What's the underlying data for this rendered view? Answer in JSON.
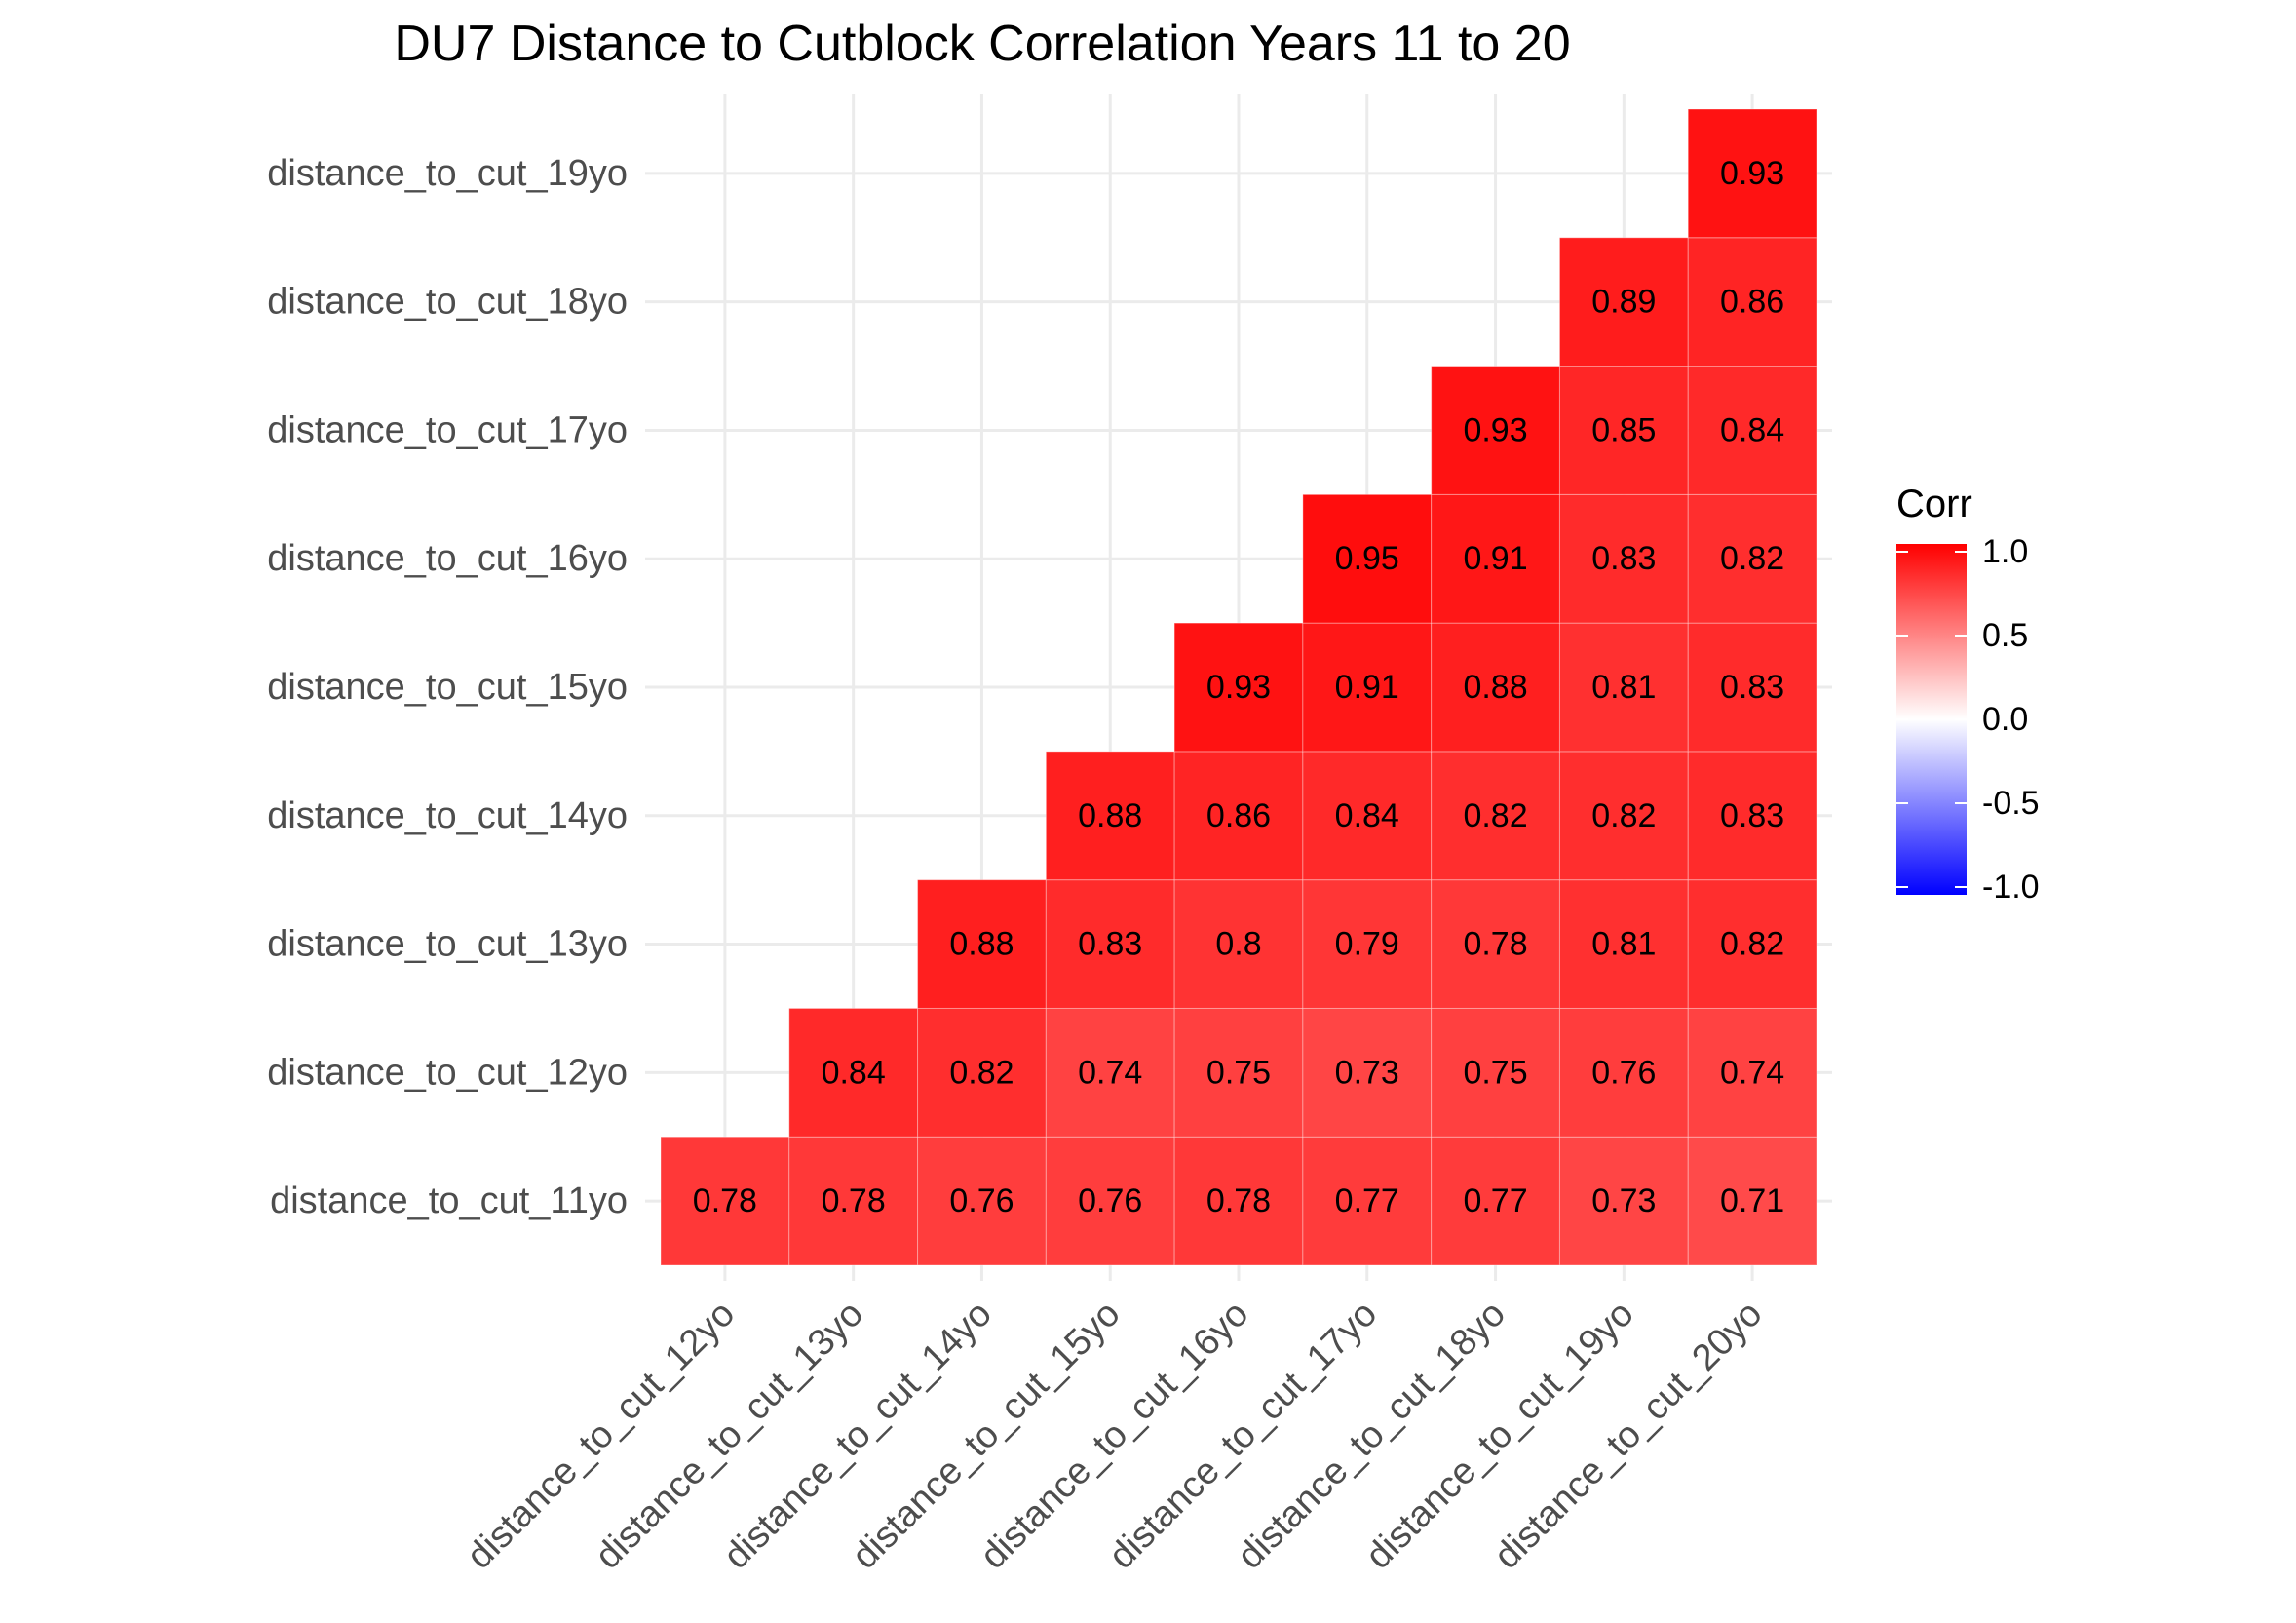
{
  "chart_data": {
    "type": "heatmap",
    "title": "DU7 Distance to Cutblock Correlation Years 11 to 20",
    "xlabel": "",
    "ylabel": "",
    "x_categories": [
      "distance_to_cut_12yo",
      "distance_to_cut_13yo",
      "distance_to_cut_14yo",
      "distance_to_cut_15yo",
      "distance_to_cut_16yo",
      "distance_to_cut_17yo",
      "distance_to_cut_18yo",
      "distance_to_cut_19yo",
      "distance_to_cut_20yo"
    ],
    "y_categories": [
      "distance_to_cut_11yo",
      "distance_to_cut_12yo",
      "distance_to_cut_13yo",
      "distance_to_cut_14yo",
      "distance_to_cut_15yo",
      "distance_to_cut_16yo",
      "distance_to_cut_17yo",
      "distance_to_cut_18yo",
      "distance_to_cut_19yo"
    ],
    "values": [
      [
        0.78,
        0.78,
        0.76,
        0.76,
        0.78,
        0.77,
        0.77,
        0.73,
        0.71
      ],
      [
        null,
        0.84,
        0.82,
        0.74,
        0.75,
        0.73,
        0.75,
        0.76,
        0.74
      ],
      [
        null,
        null,
        0.88,
        0.83,
        0.8,
        0.79,
        0.78,
        0.81,
        0.82
      ],
      [
        null,
        null,
        null,
        0.88,
        0.86,
        0.84,
        0.82,
        0.82,
        0.83
      ],
      [
        null,
        null,
        null,
        null,
        0.93,
        0.91,
        0.88,
        0.81,
        0.83
      ],
      [
        null,
        null,
        null,
        null,
        null,
        0.95,
        0.91,
        0.83,
        0.82
      ],
      [
        null,
        null,
        null,
        null,
        null,
        null,
        0.93,
        0.85,
        0.84
      ],
      [
        null,
        null,
        null,
        null,
        null,
        null,
        null,
        0.89,
        0.86
      ],
      [
        null,
        null,
        null,
        null,
        null,
        null,
        null,
        null,
        0.93
      ]
    ],
    "value_labels": [
      [
        "0.78",
        "0.78",
        "0.76",
        "0.76",
        "0.78",
        "0.77",
        "0.77",
        "0.73",
        "0.71"
      ],
      [
        null,
        "0.84",
        "0.82",
        "0.74",
        "0.75",
        "0.73",
        "0.75",
        "0.76",
        "0.74"
      ],
      [
        null,
        null,
        "0.88",
        "0.83",
        "0.8",
        "0.79",
        "0.78",
        "0.81",
        "0.82"
      ],
      [
        null,
        null,
        null,
        "0.88",
        "0.86",
        "0.84",
        "0.82",
        "0.82",
        "0.83"
      ],
      [
        null,
        null,
        null,
        null,
        "0.93",
        "0.91",
        "0.88",
        "0.81",
        "0.83"
      ],
      [
        null,
        null,
        null,
        null,
        null,
        "0.95",
        "0.91",
        "0.83",
        "0.82"
      ],
      [
        null,
        null,
        null,
        null,
        null,
        null,
        "0.93",
        "0.85",
        "0.84"
      ],
      [
        null,
        null,
        null,
        null,
        null,
        null,
        null,
        "0.89",
        "0.86"
      ],
      [
        null,
        null,
        null,
        null,
        null,
        null,
        null,
        null,
        "0.93"
      ]
    ],
    "legend": {
      "title": "Corr",
      "position": "right",
      "limits": [
        -1,
        1
      ],
      "ticks": [
        "1.0",
        "0.5",
        "0.0",
        "-0.5",
        "-1.0"
      ],
      "tick_values": [
        1,
        0.5,
        0,
        -0.5,
        -1
      ]
    },
    "color_scale": {
      "low": "#0000FF",
      "mid": "#FFFFFF",
      "high": "#FF0000"
    },
    "grid": true,
    "background": "#FFFFFF",
    "gridline_color": "#EBEBEB"
  }
}
